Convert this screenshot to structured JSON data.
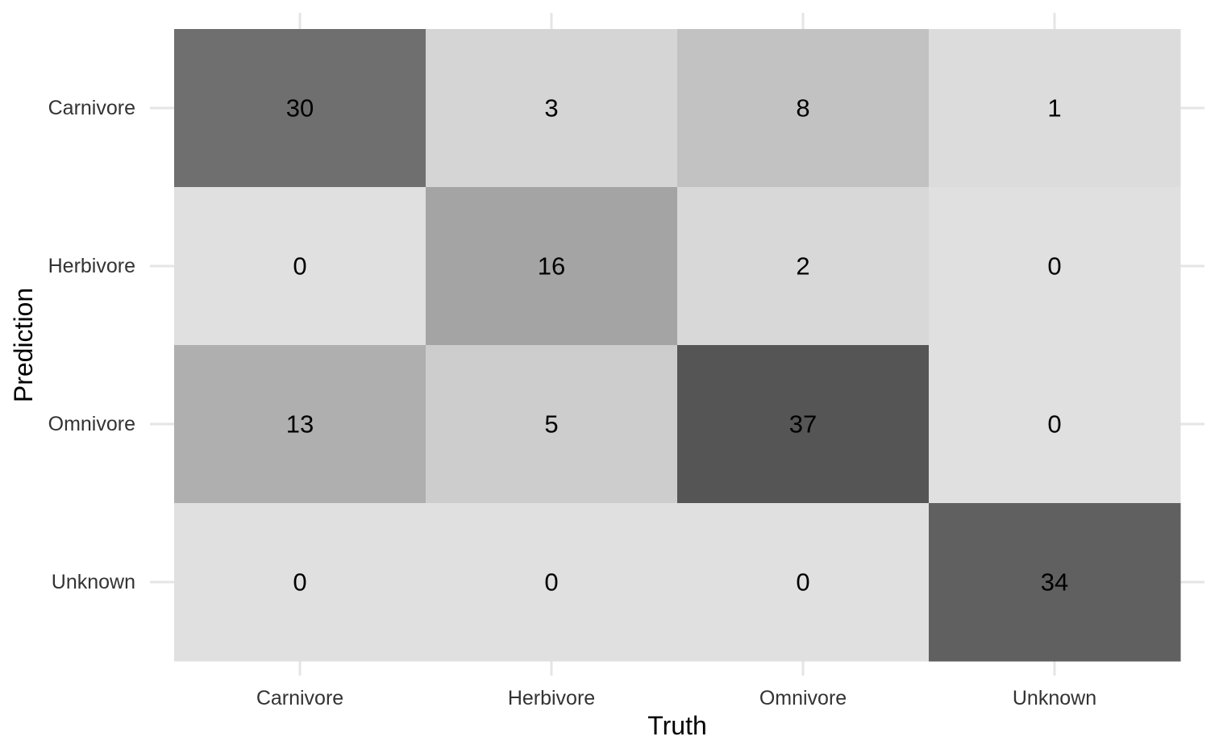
{
  "chart_data": {
    "type": "heatmap",
    "title": "",
    "xlabel": "Truth",
    "ylabel": "Prediction",
    "x_categories": [
      "Carnivore",
      "Herbivore",
      "Omnivore",
      "Unknown"
    ],
    "y_categories": [
      "Carnivore",
      "Herbivore",
      "Omnivore",
      "Unknown"
    ],
    "values": [
      [
        30,
        3,
        8,
        1
      ],
      [
        0,
        16,
        2,
        0
      ],
      [
        13,
        5,
        37,
        0
      ],
      [
        0,
        0,
        0,
        34
      ]
    ],
    "colors": {
      "low": "#e0e0e0",
      "high": "#555555",
      "grid": "#e5e5e5",
      "text": "#000000",
      "tick_text": "#333333"
    },
    "grid": true,
    "legend": "none"
  }
}
